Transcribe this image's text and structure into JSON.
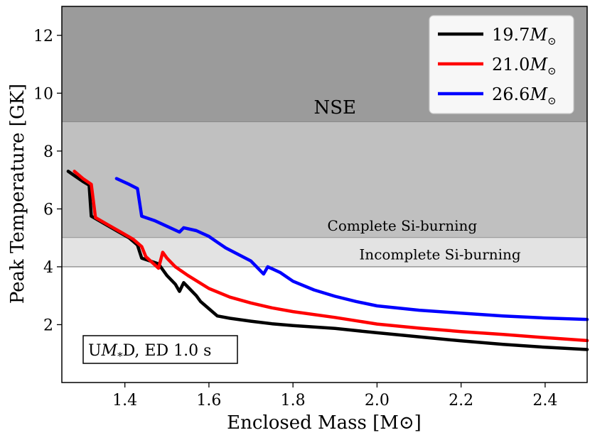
{
  "chart_data": {
    "type": "line",
    "title": "",
    "xlabel": "Enclosed Mass [M⊙]",
    "ylabel": "Peak Temperature [GK]",
    "xlim": [
      1.25,
      2.5
    ],
    "ylim": [
      0,
      13
    ],
    "xticks": [
      1.4,
      1.6,
      1.8,
      2.0,
      2.2,
      2.4
    ],
    "xtick_labels": [
      "1.4",
      "1.6",
      "1.8",
      "2.0",
      "2.2",
      "2.4"
    ],
    "yticks": [
      2,
      4,
      6,
      8,
      10,
      12
    ],
    "ytick_labels": [
      "2",
      "4",
      "6",
      "8",
      "10",
      "12"
    ],
    "grid": false,
    "legend_position": "top-right",
    "regions": [
      {
        "name": "NSE",
        "label": "NSE",
        "y0": 9,
        "y1": 13,
        "color": "#9b9b9b",
        "label_at": [
          1.9,
          9.3
        ],
        "label_size": "large"
      },
      {
        "name": "complete-si",
        "label": "Complete Si-burning",
        "y0": 5,
        "y1": 9,
        "color": "#c0c0c0",
        "label_at": [
          2.06,
          5.25
        ],
        "label_size": "small"
      },
      {
        "name": "incomplete-si",
        "label": "Incomplete Si-burning",
        "y0": 4,
        "y1": 5,
        "color": "#e3e3e3",
        "label_at": [
          2.15,
          4.25
        ],
        "label_size": "small"
      }
    ],
    "series": [
      {
        "name": "19.7M⊙",
        "legend_main": "19.7",
        "color": "#000000",
        "points": [
          [
            1.265,
            7.3
          ],
          [
            1.28,
            7.15
          ],
          [
            1.3,
            6.95
          ],
          [
            1.315,
            6.82
          ],
          [
            1.32,
            5.75
          ],
          [
            1.35,
            5.5
          ],
          [
            1.38,
            5.25
          ],
          [
            1.41,
            5.0
          ],
          [
            1.43,
            4.75
          ],
          [
            1.44,
            4.3
          ],
          [
            1.46,
            4.2
          ],
          [
            1.48,
            4.1
          ],
          [
            1.5,
            3.7
          ],
          [
            1.52,
            3.4
          ],
          [
            1.53,
            3.15
          ],
          [
            1.54,
            3.45
          ],
          [
            1.55,
            3.3
          ],
          [
            1.57,
            3.0
          ],
          [
            1.58,
            2.8
          ],
          [
            1.6,
            2.55
          ],
          [
            1.62,
            2.3
          ],
          [
            1.65,
            2.22
          ],
          [
            1.7,
            2.12
          ],
          [
            1.75,
            2.03
          ],
          [
            1.8,
            1.97
          ],
          [
            1.9,
            1.87
          ],
          [
            2.0,
            1.72
          ],
          [
            2.1,
            1.58
          ],
          [
            2.2,
            1.44
          ],
          [
            2.3,
            1.32
          ],
          [
            2.4,
            1.22
          ],
          [
            2.5,
            1.14
          ]
        ]
      },
      {
        "name": "21.0M⊙",
        "legend_main": "21.0",
        "color": "#ff0000",
        "points": [
          [
            1.28,
            7.3
          ],
          [
            1.3,
            7.05
          ],
          [
            1.32,
            6.85
          ],
          [
            1.33,
            5.7
          ],
          [
            1.36,
            5.45
          ],
          [
            1.39,
            5.2
          ],
          [
            1.42,
            4.95
          ],
          [
            1.44,
            4.7
          ],
          [
            1.45,
            4.35
          ],
          [
            1.48,
            3.95
          ],
          [
            1.49,
            4.5
          ],
          [
            1.5,
            4.3
          ],
          [
            1.52,
            4.0
          ],
          [
            1.55,
            3.7
          ],
          [
            1.6,
            3.25
          ],
          [
            1.65,
            2.95
          ],
          [
            1.7,
            2.75
          ],
          [
            1.75,
            2.58
          ],
          [
            1.8,
            2.45
          ],
          [
            1.9,
            2.25
          ],
          [
            2.0,
            2.02
          ],
          [
            2.1,
            1.88
          ],
          [
            2.2,
            1.76
          ],
          [
            2.3,
            1.66
          ],
          [
            2.4,
            1.55
          ],
          [
            2.5,
            1.45
          ]
        ]
      },
      {
        "name": "26.6M⊙",
        "legend_main": "26.6",
        "color": "#0000ff",
        "points": [
          [
            1.38,
            7.05
          ],
          [
            1.41,
            6.85
          ],
          [
            1.43,
            6.7
          ],
          [
            1.44,
            5.75
          ],
          [
            1.47,
            5.6
          ],
          [
            1.5,
            5.4
          ],
          [
            1.53,
            5.2
          ],
          [
            1.54,
            5.35
          ],
          [
            1.57,
            5.25
          ],
          [
            1.6,
            5.05
          ],
          [
            1.62,
            4.85
          ],
          [
            1.64,
            4.65
          ],
          [
            1.66,
            4.5
          ],
          [
            1.7,
            4.2
          ],
          [
            1.73,
            3.75
          ],
          [
            1.74,
            4.0
          ],
          [
            1.77,
            3.8
          ],
          [
            1.8,
            3.5
          ],
          [
            1.85,
            3.2
          ],
          [
            1.9,
            2.98
          ],
          [
            1.95,
            2.8
          ],
          [
            2.0,
            2.65
          ],
          [
            2.1,
            2.5
          ],
          [
            2.2,
            2.4
          ],
          [
            2.3,
            2.3
          ],
          [
            2.4,
            2.23
          ],
          [
            2.5,
            2.18
          ]
        ]
      }
    ],
    "annotations": [
      {
        "name": "model-label",
        "text_pre": "U",
        "text_math": "M",
        "text_sub": "*",
        "text_post": "D, ED 1.0 s",
        "position": "bottom-left"
      }
    ]
  }
}
